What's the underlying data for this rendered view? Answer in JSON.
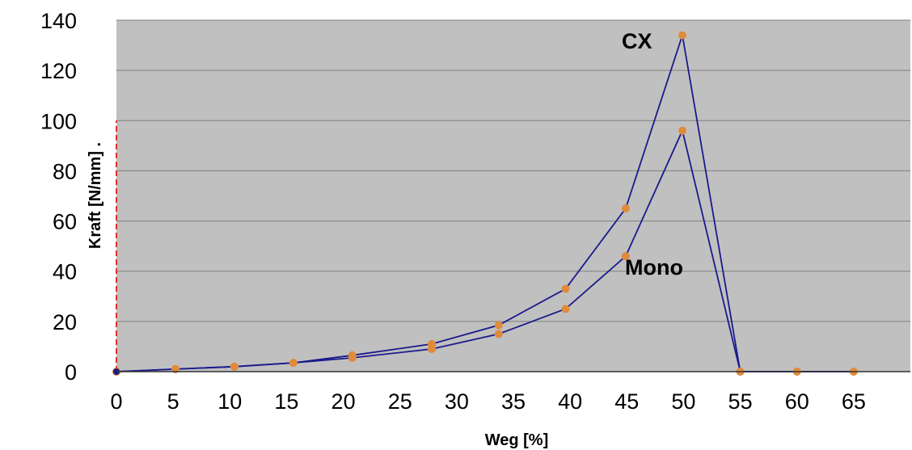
{
  "chart_data": {
    "type": "line",
    "xlabel": "Weg [%]",
    "ylabel": "Kraft [N/mm] .",
    "x_ticks": [
      "0",
      "5",
      "10",
      "15",
      "20",
      "25",
      "30",
      "35",
      "40",
      "45",
      "50",
      "55",
      "60",
      "65"
    ],
    "y_ticks": [
      "0",
      "20",
      "40",
      "60",
      "80",
      "100",
      "120",
      "140"
    ],
    "xlim": [
      0,
      70
    ],
    "ylim": [
      0,
      140
    ],
    "grid": "horizontal",
    "legend": "none",
    "colors": {
      "plot_background": "#c0c0c0",
      "line": "#1a1a8c",
      "marker": "#e08a3c",
      "gridline": "#7f7f7f",
      "reference_line": "#e03030"
    },
    "series": [
      {
        "name": "CX",
        "x": [
          0,
          5.2,
          10.4,
          15.6,
          20.8,
          27.8,
          33.7,
          39.6,
          44.9,
          49.9,
          55.0,
          60.0,
          65.0
        ],
        "y": [
          0,
          1.0,
          2.0,
          3.5,
          6.5,
          11.0,
          18.5,
          33.0,
          65.0,
          134.0,
          0,
          0,
          0
        ]
      },
      {
        "name": "Mono",
        "x": [
          0,
          5.2,
          10.4,
          15.6,
          20.8,
          27.8,
          33.7,
          39.6,
          44.9,
          49.9,
          55.0,
          60.0,
          65.0
        ],
        "y": [
          0,
          1.0,
          2.0,
          3.5,
          5.5,
          9.0,
          15.0,
          25.0,
          46.0,
          96.0,
          0,
          0,
          0
        ]
      }
    ],
    "reference_line": {
      "x": 0,
      "y_from": 0,
      "y_to": 100
    }
  }
}
